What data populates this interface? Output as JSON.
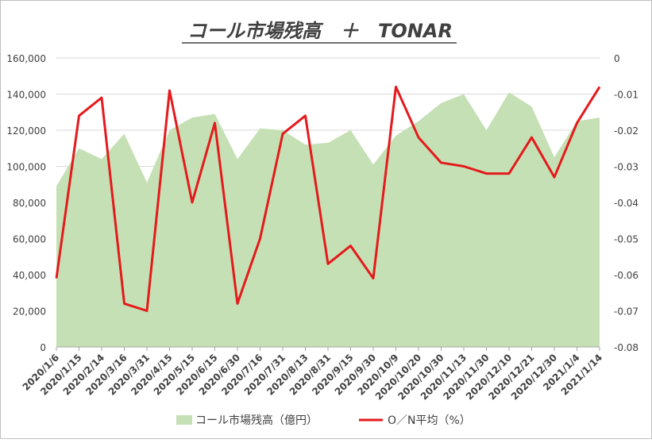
{
  "chart_data": {
    "type": "area+line",
    "title": "コール市場残高　＋　TONAR",
    "colors": {
      "area": "#C5E0B4",
      "line": "#E41A1C",
      "grid": "#D9D9D9",
      "axis": "#A6A6A6",
      "text": "#404040"
    },
    "categories": [
      "2020/1/6",
      "2020/1/15",
      "2020/2/14",
      "2020/3/16",
      "2020/3/31",
      "2020/4/15",
      "2020/5/15",
      "2020/6/15",
      "2020/6/30",
      "2020/7/16",
      "2020/7/31",
      "2020/8/13",
      "2020/8/31",
      "2020/9/15",
      "2020/9/30",
      "2020/10/9",
      "2020/10/20",
      "2020/10/30",
      "2020/11/13",
      "2020/11/30",
      "2020/12/10",
      "2020/12/21",
      "2020/12/30",
      "2021/1/4",
      "2021/1/14"
    ],
    "y_left": {
      "ylim": [
        0,
        160000
      ],
      "ticks": [
        "0",
        "20,000",
        "40,000",
        "60,000",
        "80,000",
        "100,000",
        "120,000",
        "140,000",
        "160,000"
      ]
    },
    "y_right": {
      "ylim": [
        -0.08,
        0
      ],
      "ticks": [
        "-0.08",
        "-0.07",
        "-0.06",
        "-0.05",
        "-0.04",
        "-0.03",
        "-0.02",
        "-0.01",
        "0"
      ]
    },
    "series": [
      {
        "name": "コール市場残高（億円）",
        "type": "area",
        "axis": "left",
        "values": [
          89000,
          110000,
          104000,
          118000,
          91000,
          120000,
          127000,
          129000,
          104000,
          121000,
          120000,
          112000,
          113000,
          120000,
          101000,
          117000,
          125000,
          135000,
          140000,
          120000,
          141000,
          133000,
          105000,
          125000,
          127000
        ]
      },
      {
        "name": "O／N平均（%）",
        "type": "line",
        "axis": "right",
        "values": [
          -0.061,
          -0.016,
          -0.011,
          -0.068,
          -0.07,
          -0.009,
          -0.04,
          -0.018,
          -0.068,
          -0.05,
          -0.021,
          -0.016,
          -0.057,
          -0.052,
          -0.061,
          -0.008,
          -0.022,
          -0.029,
          -0.03,
          -0.032,
          -0.032,
          -0.022,
          -0.033,
          -0.018,
          -0.008
        ]
      }
    ],
    "legend_position": "bottom",
    "grid": true
  }
}
